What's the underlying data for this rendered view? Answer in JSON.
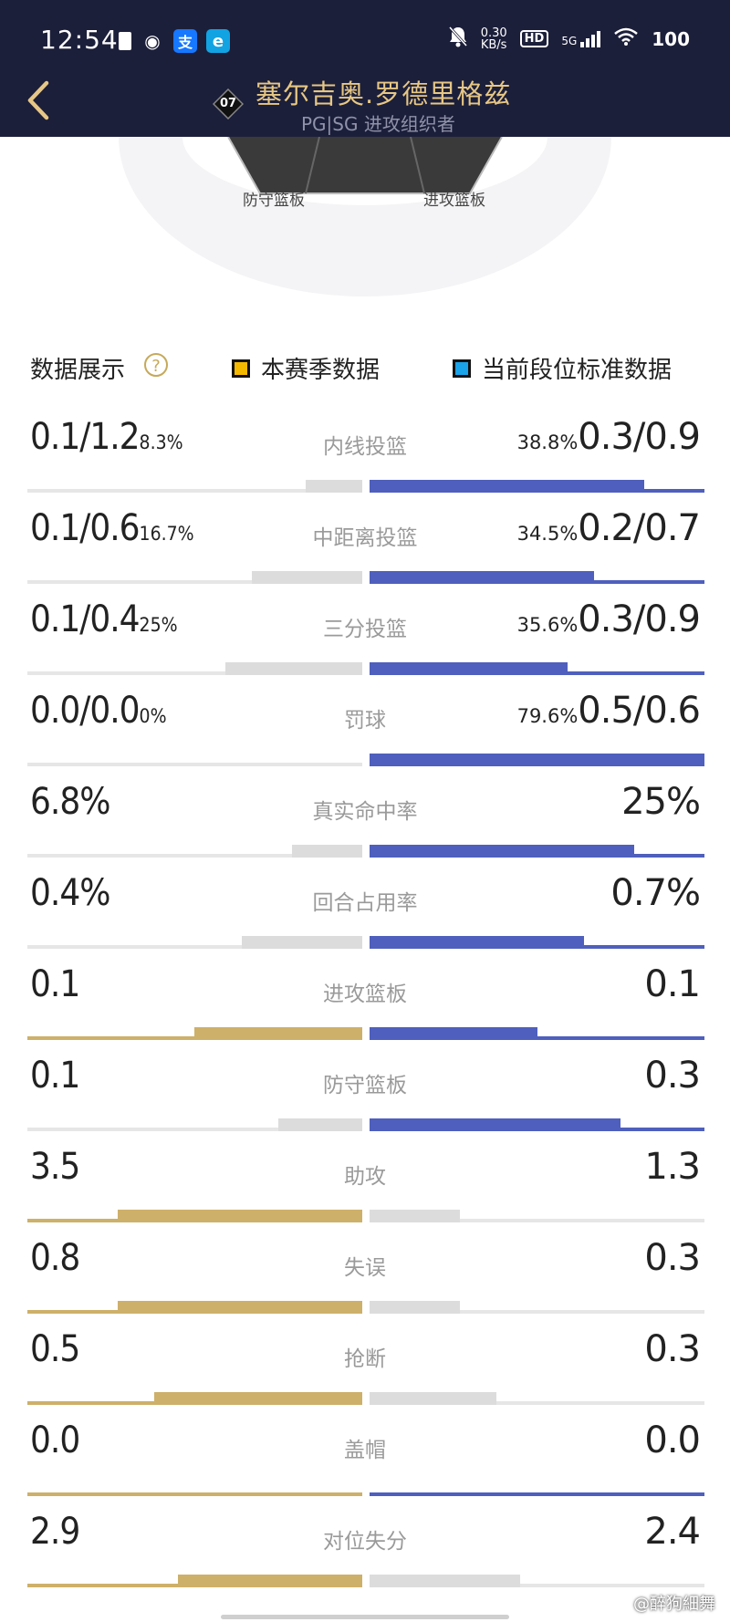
{
  "status_bar": {
    "time": "12:54",
    "speed_top": "0.30",
    "speed_unit": "KB/s",
    "network": "HD",
    "signal": "5G",
    "battery": "100"
  },
  "header": {
    "jersey_number": "07",
    "player_name": "塞尔吉奥.罗德里格兹",
    "position": "PG|SG 进攻组织者"
  },
  "radar": {
    "label_left": "防守篮板",
    "label_right": "进攻篮板"
  },
  "legend": {
    "title": "数据展示",
    "season_label": "本赛季数据",
    "standard_label": "当前段位标准数据",
    "colors": {
      "season": "#f5b800",
      "standard": "#1aa3e8"
    }
  },
  "stats": [
    {
      "label": "内线投篮",
      "left": "0.1/1.2",
      "left_pct": "8.3%",
      "right": "0.3/0.9",
      "right_pct": "38.8%",
      "left_fill": 0.17,
      "right_fill": 0.82,
      "left_color": "gray",
      "right_color": "blue"
    },
    {
      "label": "中距离投篮",
      "left": "0.1/0.6",
      "left_pct": "16.7%",
      "right": "0.2/0.7",
      "right_pct": "34.5%",
      "left_fill": 0.33,
      "right_fill": 0.67,
      "left_color": "gray",
      "right_color": "blue"
    },
    {
      "label": "三分投篮",
      "left": "0.1/0.4",
      "left_pct": "25%",
      "right": "0.3/0.9",
      "right_pct": "35.6%",
      "left_fill": 0.41,
      "right_fill": 0.59,
      "left_color": "gray",
      "right_color": "blue"
    },
    {
      "label": "罚球",
      "left": "0.0/0.0",
      "left_pct": "0%",
      "right": "0.5/0.6",
      "right_pct": "79.6%",
      "left_fill": 0.0,
      "right_fill": 1.0,
      "left_color": "gray",
      "right_color": "blue"
    },
    {
      "label": "真实命中率",
      "left": "6.8%",
      "left_pct": "",
      "right": "25%",
      "right_pct": "",
      "left_fill": 0.21,
      "right_fill": 0.79,
      "left_color": "gray",
      "right_color": "blue"
    },
    {
      "label": "回合占用率",
      "left": "0.4%",
      "left_pct": "",
      "right": "0.7%",
      "right_pct": "",
      "left_fill": 0.36,
      "right_fill": 0.64,
      "left_color": "gray",
      "right_color": "blue"
    },
    {
      "label": "进攻篮板",
      "left": "0.1",
      "left_pct": "",
      "right": "0.1",
      "right_pct": "",
      "left_fill": 0.5,
      "right_fill": 0.5,
      "left_color": "gold",
      "right_color": "blue"
    },
    {
      "label": "防守篮板",
      "left": "0.1",
      "left_pct": "",
      "right": "0.3",
      "right_pct": "",
      "left_fill": 0.25,
      "right_fill": 0.75,
      "left_color": "gray",
      "right_color": "blue"
    },
    {
      "label": "助攻",
      "left": "3.5",
      "left_pct": "",
      "right": "1.3",
      "right_pct": "",
      "left_fill": 0.73,
      "right_fill": 0.27,
      "left_color": "gold",
      "right_color": "gray"
    },
    {
      "label": "失误",
      "left": "0.8",
      "left_pct": "",
      "right": "0.3",
      "right_pct": "",
      "left_fill": 0.73,
      "right_fill": 0.27,
      "left_color": "gold",
      "right_color": "gray"
    },
    {
      "label": "抢断",
      "left": "0.5",
      "left_pct": "",
      "right": "0.3",
      "right_pct": "",
      "left_fill": 0.62,
      "right_fill": 0.38,
      "left_color": "gold",
      "right_color": "gray"
    },
    {
      "label": "盖帽",
      "left": "0.0",
      "left_pct": "",
      "right": "0.0",
      "right_pct": "",
      "left_fill": 0.0,
      "right_fill": 0.0,
      "left_color": "gold",
      "right_color": "blue"
    },
    {
      "label": "对位失分",
      "left": "2.9",
      "left_pct": "",
      "right": "2.4",
      "right_pct": "",
      "left_fill": 0.55,
      "right_fill": 0.45,
      "left_color": "gold",
      "right_color": "gray"
    }
  ],
  "watermark": "@醉狗細舞"
}
